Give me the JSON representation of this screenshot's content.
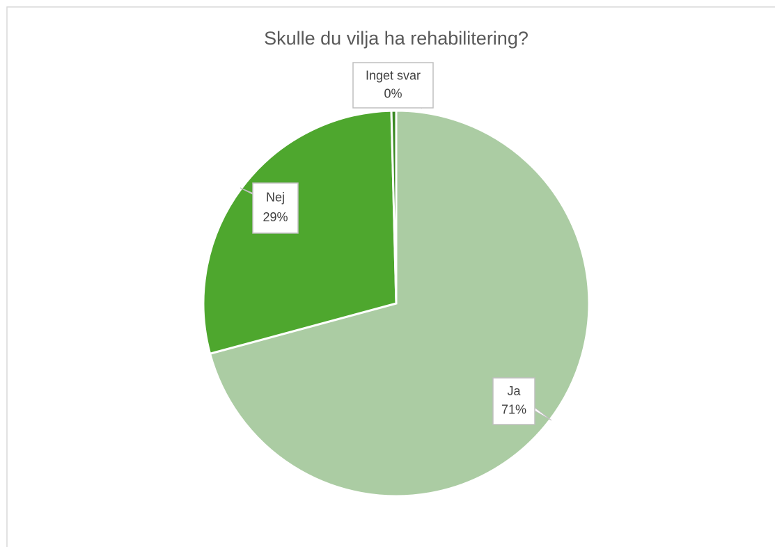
{
  "chart_data": {
    "type": "pie",
    "title": "Skulle du vilja ha rehabilitering?",
    "categories": [
      "Ja",
      "Nej",
      "Inget svar"
    ],
    "values": [
      70.8,
      28.8,
      0.4
    ],
    "value_labels": [
      "71%",
      "29%",
      "0%"
    ],
    "colors": [
      "#abcca3",
      "#4ea72e",
      "#3b8a24"
    ]
  }
}
